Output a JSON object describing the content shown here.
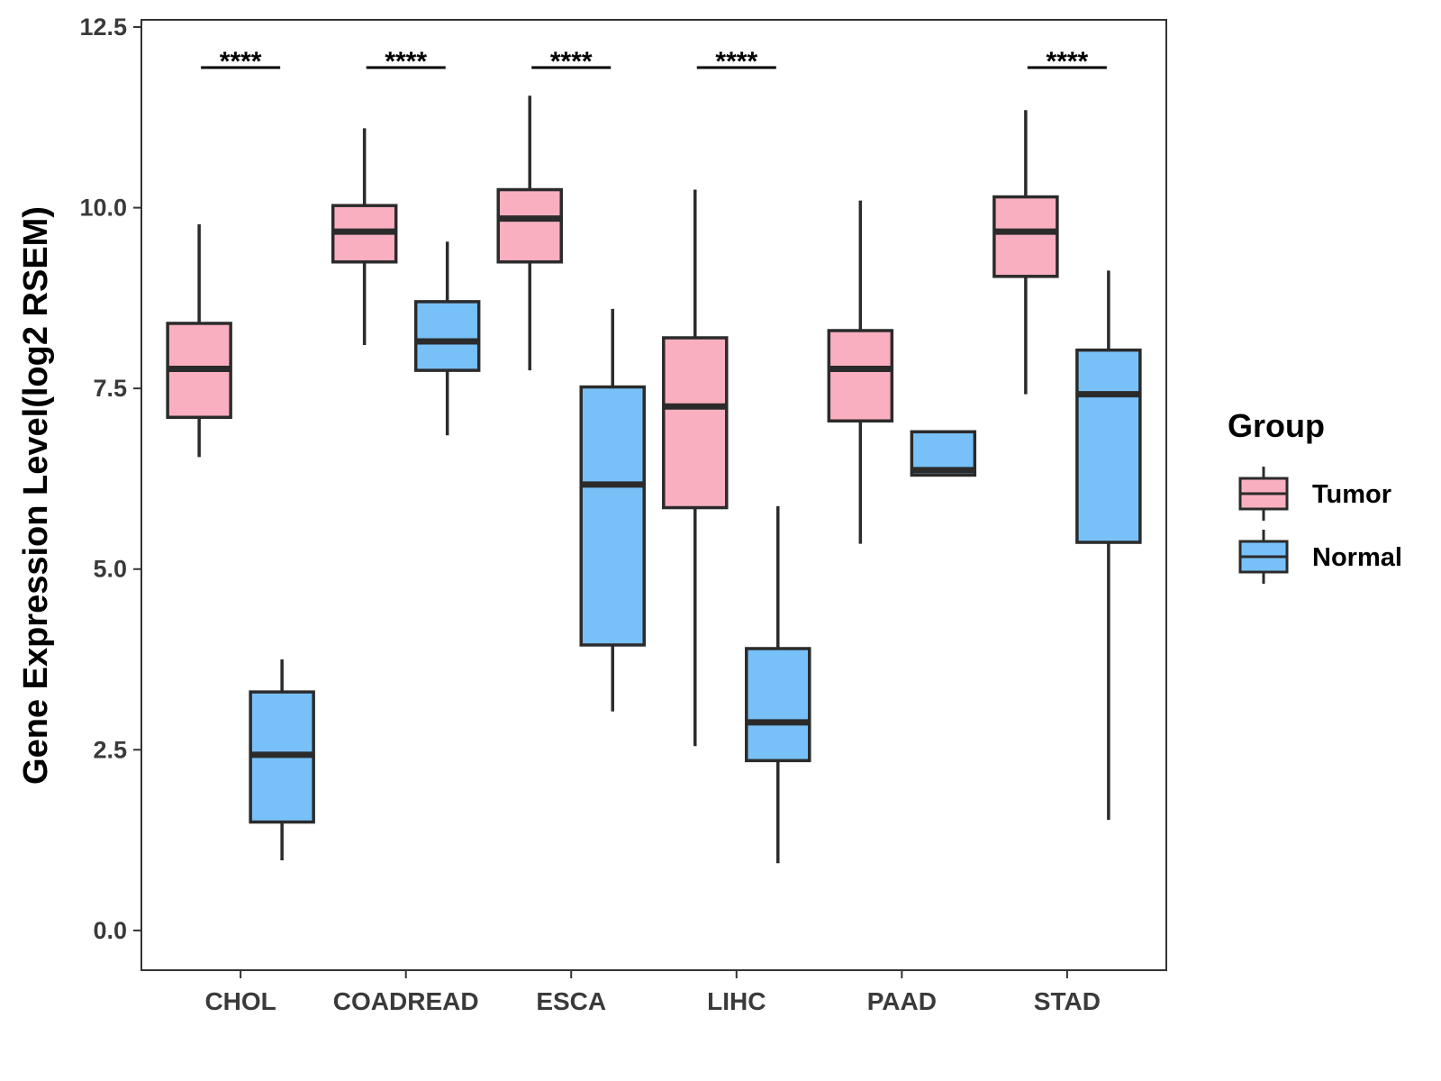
{
  "chart_data": {
    "type": "boxplot",
    "title": "",
    "xlabel": "",
    "ylabel": "Gene Expression Level(log2 RSEM)",
    "ylim": [
      -0.55,
      12.6
    ],
    "yticks": [
      "0.0",
      "2.5",
      "5.0",
      "7.5",
      "10.0",
      "12.5"
    ],
    "ytick_values": [
      0,
      2.5,
      5,
      7.5,
      10,
      12.5
    ],
    "grid": false,
    "legend": {
      "title": "Group",
      "position": "right",
      "entries": [
        {
          "name": "Tumor",
          "color": "#FAAFC0"
        },
        {
          "name": "Normal",
          "color": "#78C1F8"
        }
      ]
    },
    "categories": [
      "CHOL",
      "COADREAD",
      "ESCA",
      "LIHC",
      "PAAD",
      "STAD"
    ],
    "significance": [
      "****",
      "****",
      "****",
      "****",
      "",
      "****"
    ],
    "series": [
      {
        "name": "Tumor",
        "color": "#FAAFC0",
        "boxes": [
          {
            "min": 6.55,
            "q1": 7.1,
            "median": 7.77,
            "q3": 8.4,
            "max": 9.77
          },
          {
            "min": 8.1,
            "q1": 9.25,
            "median": 9.67,
            "q3": 10.03,
            "max": 11.1
          },
          {
            "min": 7.75,
            "q1": 9.25,
            "median": 9.85,
            "q3": 10.25,
            "max": 11.55
          },
          {
            "min": 2.55,
            "q1": 5.85,
            "median": 7.25,
            "q3": 8.2,
            "max": 10.25
          },
          {
            "min": 5.35,
            "q1": 7.05,
            "median": 7.77,
            "q3": 8.3,
            "max": 10.1
          },
          {
            "min": 7.42,
            "q1": 9.05,
            "median": 9.67,
            "q3": 10.15,
            "max": 11.35
          }
        ]
      },
      {
        "name": "Normal",
        "color": "#78C1F8",
        "boxes": [
          {
            "min": 0.97,
            "q1": 1.5,
            "median": 2.43,
            "q3": 3.3,
            "max": 3.75
          },
          {
            "min": 6.85,
            "q1": 7.75,
            "median": 8.15,
            "q3": 8.7,
            "max": 9.53
          },
          {
            "min": 3.03,
            "q1": 3.95,
            "median": 6.17,
            "q3": 7.52,
            "max": 8.6
          },
          {
            "min": 0.93,
            "q1": 2.35,
            "median": 2.88,
            "q3": 3.9,
            "max": 5.87
          },
          {
            "min": 6.3,
            "q1": 6.3,
            "median": 6.37,
            "q3": 6.9,
            "max": 6.9
          },
          {
            "min": 1.53,
            "q1": 5.37,
            "median": 7.42,
            "q3": 8.03,
            "max": 9.13
          }
        ]
      }
    ]
  }
}
